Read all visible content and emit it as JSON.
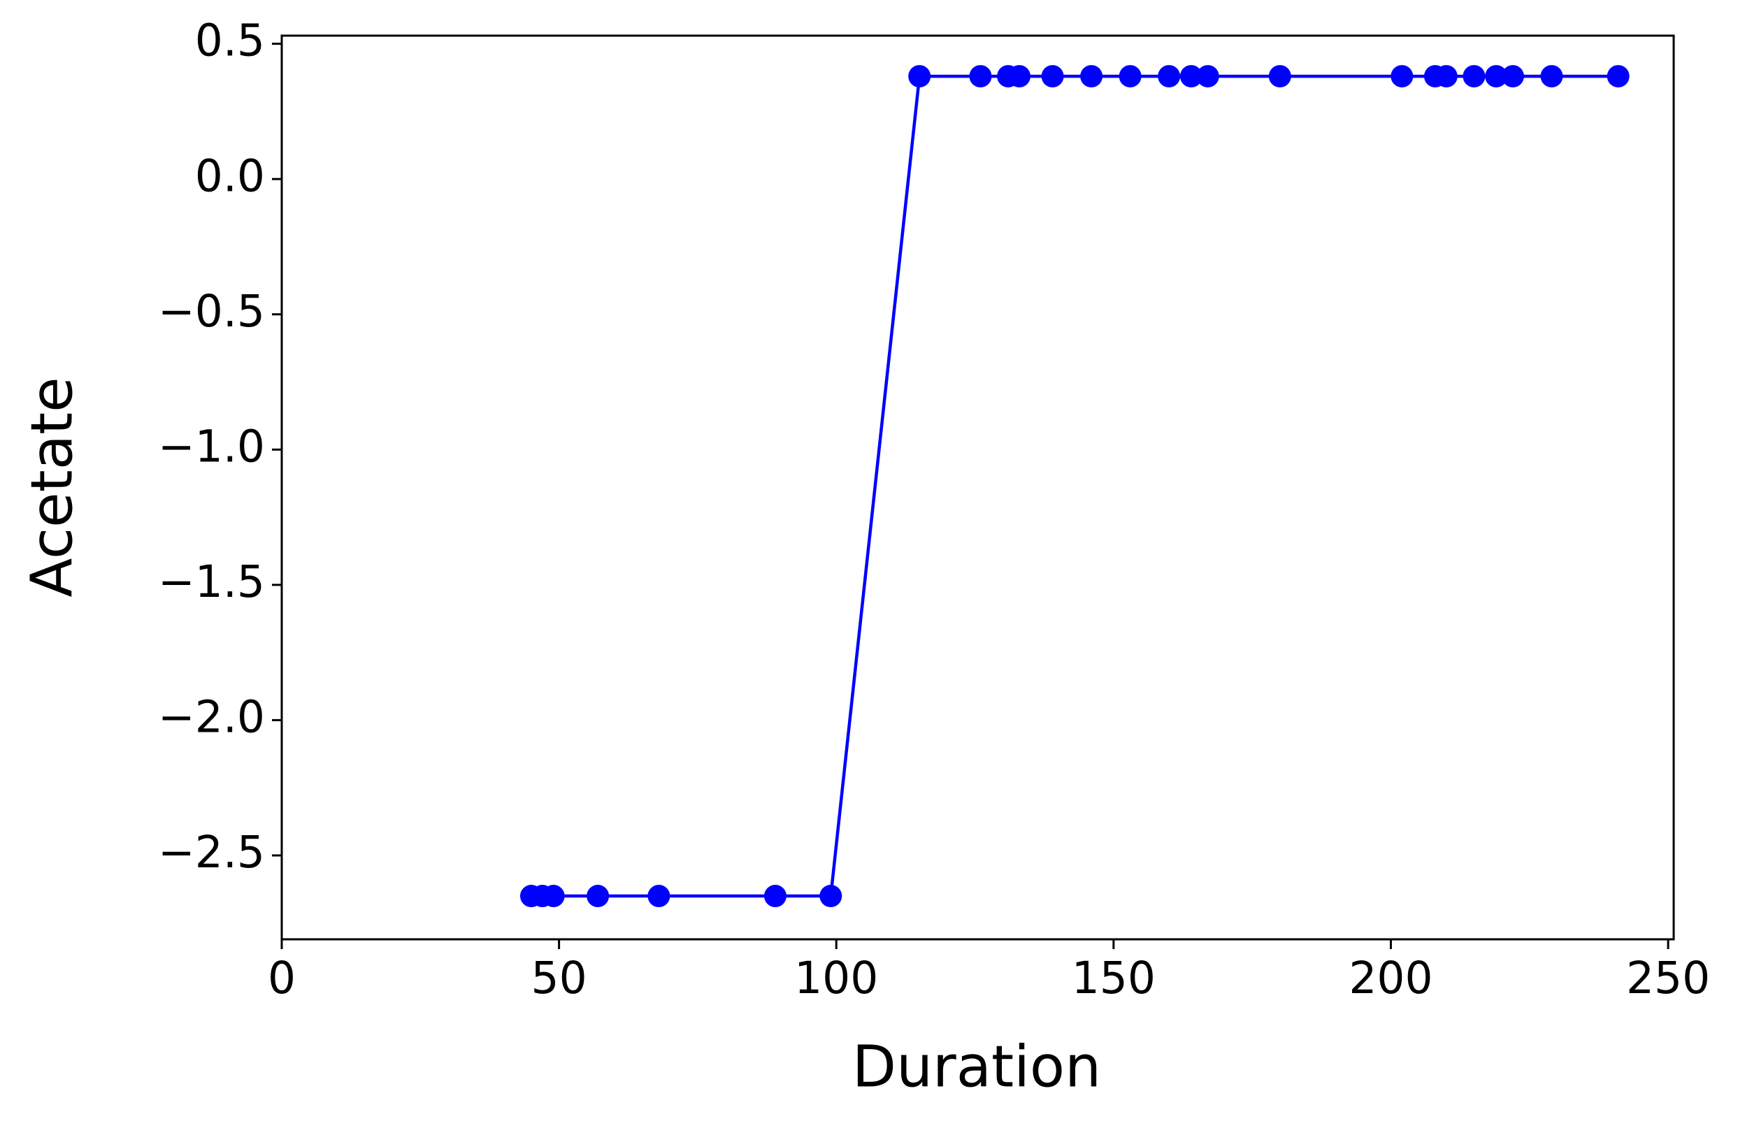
{
  "chart_data": {
    "type": "line",
    "x_label": "Duration",
    "y_label": "Acetate",
    "x": [
      45,
      47,
      49,
      57,
      68,
      89,
      99,
      115,
      126,
      131,
      133,
      139,
      146,
      153,
      160,
      164,
      167,
      180,
      202,
      208,
      210,
      215,
      219,
      222,
      229,
      241
    ],
    "series": [
      {
        "color": "#0000ff",
        "marker": "circle",
        "values": [
          -2.65,
          -2.65,
          -2.65,
          -2.65,
          -2.65,
          -2.65,
          -2.65,
          0.38,
          0.38,
          0.38,
          0.38,
          0.38,
          0.38,
          0.38,
          0.38,
          0.38,
          0.38,
          0.38,
          0.38,
          0.38,
          0.38,
          0.38,
          0.38,
          0.38,
          0.38,
          0.38
        ]
      }
    ],
    "xlim": [
      0,
      251
    ],
    "ylim": [
      -2.81,
      0.53
    ],
    "xticks": [
      0,
      50,
      100,
      150,
      200,
      250
    ],
    "yticks": [
      {
        "value": -2.5,
        "label": "−2.5"
      },
      {
        "value": -2.0,
        "label": "−2.0"
      },
      {
        "value": -1.5,
        "label": "−1.5"
      },
      {
        "value": -1.0,
        "label": "−1.0"
      },
      {
        "value": -0.5,
        "label": "−0.5"
      },
      {
        "value": 0.0,
        "label": "0.0"
      },
      0.5
    ],
    "grid": false
  }
}
